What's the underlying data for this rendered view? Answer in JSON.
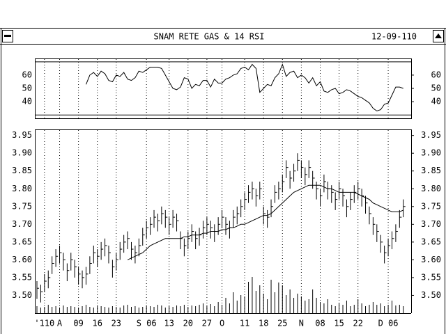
{
  "header": {
    "title": "SNAM RETE GAS & 14 RSI",
    "date": "12-09-110"
  },
  "chart_data": [
    {
      "type": "line",
      "values": [
        null,
        null,
        null,
        null,
        null,
        null,
        null,
        null,
        null,
        null,
        null,
        null,
        null,
        53,
        60,
        62,
        59,
        63,
        61,
        56,
        55,
        60,
        59,
        62,
        57,
        56,
        58,
        63,
        62,
        64,
        66,
        66,
        66,
        65,
        60,
        55,
        50,
        49,
        51,
        58,
        57,
        50,
        53,
        52,
        56,
        56,
        51,
        57,
        54,
        54,
        57,
        58,
        60,
        61,
        65,
        66,
        64,
        68,
        65,
        47,
        50,
        53,
        52,
        58,
        61,
        68,
        59,
        62,
        63,
        58,
        60,
        58,
        54,
        58,
        52,
        55,
        48,
        47,
        49,
        50,
        46,
        47,
        49,
        48,
        46,
        44,
        43,
        41,
        39,
        35,
        33,
        34,
        38,
        39,
        45,
        51,
        51,
        50
      ],
      "levels": [
        30,
        70
      ],
      "ylim": [
        27.5,
        72
      ],
      "yticks": [
        40,
        50,
        60
      ],
      "color": "#000000"
    },
    {
      "type": "hlc",
      "categories": [
        null,
        null,
        "'110",
        null,
        null,
        null,
        "A",
        null,
        null,
        null,
        null,
        "09",
        null,
        null,
        null,
        null,
        "16",
        null,
        null,
        null,
        null,
        "23",
        null,
        null,
        null,
        null,
        null,
        null,
        null,
        "S 06",
        null,
        null,
        null,
        null,
        null,
        "13",
        null,
        null,
        null,
        null,
        "20",
        null,
        null,
        null,
        null,
        "27",
        null,
        null,
        null,
        "O",
        null,
        null,
        null,
        null,
        null,
        "11",
        null,
        null,
        null,
        null,
        "18",
        null,
        null,
        null,
        null,
        "25",
        null,
        null,
        null,
        null,
        "N",
        null,
        null,
        null,
        null,
        "08",
        null,
        null,
        null,
        null,
        "15",
        null,
        null,
        null,
        null,
        "22",
        null,
        null,
        null,
        null,
        null,
        null,
        null,
        "D 06",
        null,
        null,
        null,
        null
      ],
      "high": [
        3.54,
        3.53,
        3.56,
        3.57,
        3.61,
        3.63,
        3.64,
        3.62,
        3.59,
        3.62,
        3.6,
        3.58,
        3.57,
        3.58,
        3.61,
        3.64,
        3.63,
        3.65,
        3.66,
        3.64,
        3.6,
        3.62,
        3.65,
        3.67,
        3.68,
        3.65,
        3.64,
        3.66,
        3.69,
        3.71,
        3.72,
        3.74,
        3.73,
        3.75,
        3.74,
        3.72,
        3.74,
        3.73,
        3.68,
        3.66,
        3.68,
        3.7,
        3.68,
        3.69,
        3.71,
        3.72,
        3.71,
        3.7,
        3.72,
        3.74,
        3.72,
        3.71,
        3.74,
        3.75,
        3.77,
        3.79,
        3.81,
        3.82,
        3.8,
        3.82,
        3.75,
        3.74,
        3.77,
        3.81,
        3.82,
        3.84,
        3.88,
        3.85,
        3.87,
        3.9,
        3.88,
        3.86,
        3.88,
        3.85,
        3.82,
        3.8,
        3.84,
        3.82,
        3.81,
        3.79,
        3.82,
        3.8,
        3.77,
        3.79,
        3.81,
        3.82,
        3.8,
        3.78,
        3.75,
        3.72,
        3.7,
        3.67,
        3.64,
        3.66,
        3.68,
        3.7,
        3.74,
        3.77
      ],
      "low": [
        3.49,
        3.48,
        3.51,
        3.52,
        3.56,
        3.58,
        3.59,
        3.57,
        3.54,
        3.57,
        3.55,
        3.53,
        3.52,
        3.53,
        3.56,
        3.59,
        3.58,
        3.6,
        3.61,
        3.59,
        3.55,
        3.57,
        3.6,
        3.62,
        3.63,
        3.6,
        3.59,
        3.61,
        3.64,
        3.66,
        3.67,
        3.69,
        3.68,
        3.7,
        3.69,
        3.67,
        3.69,
        3.68,
        3.63,
        3.61,
        3.63,
        3.65,
        3.63,
        3.64,
        3.66,
        3.67,
        3.66,
        3.65,
        3.67,
        3.69,
        3.67,
        3.66,
        3.69,
        3.7,
        3.72,
        3.74,
        3.76,
        3.77,
        3.75,
        3.77,
        3.7,
        3.69,
        3.72,
        3.76,
        3.77,
        3.79,
        3.83,
        3.8,
        3.82,
        3.85,
        3.83,
        3.81,
        3.83,
        3.8,
        3.77,
        3.75,
        3.79,
        3.77,
        3.76,
        3.74,
        3.77,
        3.75,
        3.72,
        3.74,
        3.76,
        3.77,
        3.75,
        3.73,
        3.7,
        3.67,
        3.65,
        3.62,
        3.59,
        3.61,
        3.63,
        3.65,
        3.69,
        3.72
      ],
      "close": [
        3.52,
        3.51,
        3.54,
        3.55,
        3.59,
        3.61,
        3.62,
        3.6,
        3.57,
        3.6,
        3.58,
        3.56,
        3.55,
        3.56,
        3.59,
        3.62,
        3.61,
        3.63,
        3.64,
        3.62,
        3.58,
        3.6,
        3.63,
        3.65,
        3.66,
        3.63,
        3.62,
        3.64,
        3.67,
        3.69,
        3.7,
        3.72,
        3.71,
        3.73,
        3.72,
        3.7,
        3.72,
        3.71,
        3.66,
        3.64,
        3.66,
        3.68,
        3.66,
        3.67,
        3.69,
        3.7,
        3.69,
        3.68,
        3.7,
        3.72,
        3.7,
        3.69,
        3.72,
        3.73,
        3.75,
        3.77,
        3.79,
        3.8,
        3.78,
        3.8,
        3.73,
        3.72,
        3.75,
        3.79,
        3.8,
        3.82,
        3.86,
        3.83,
        3.85,
        3.88,
        3.86,
        3.84,
        3.86,
        3.83,
        3.8,
        3.78,
        3.82,
        3.8,
        3.79,
        3.77,
        3.8,
        3.78,
        3.75,
        3.77,
        3.79,
        3.8,
        3.78,
        3.76,
        3.73,
        3.7,
        3.68,
        3.65,
        3.62,
        3.64,
        3.66,
        3.68,
        3.72,
        3.75
      ],
      "moving_average": [
        null,
        null,
        null,
        null,
        null,
        null,
        null,
        null,
        null,
        null,
        null,
        null,
        null,
        null,
        null,
        null,
        null,
        null,
        null,
        null,
        null,
        null,
        null,
        null,
        3.6,
        3.605,
        3.61,
        3.615,
        3.62,
        3.63,
        3.64,
        3.645,
        3.65,
        3.655,
        3.66,
        3.66,
        3.66,
        3.66,
        3.66,
        3.665,
        3.665,
        3.67,
        3.67,
        3.67,
        3.675,
        3.675,
        3.68,
        3.68,
        3.68,
        3.685,
        3.685,
        3.69,
        3.69,
        3.695,
        3.7,
        3.7,
        3.705,
        3.71,
        3.715,
        3.72,
        3.725,
        3.725,
        3.73,
        3.74,
        3.75,
        3.76,
        3.77,
        3.78,
        3.79,
        3.795,
        3.8,
        3.805,
        3.81,
        3.81,
        3.81,
        3.81,
        3.805,
        3.8,
        3.8,
        3.795,
        3.79,
        3.79,
        3.79,
        3.79,
        3.79,
        3.785,
        3.78,
        3.775,
        3.77,
        3.76,
        3.755,
        3.75,
        3.745,
        3.74,
        3.735,
        3.735,
        3.735,
        3.74
      ],
      "volume": [
        10,
        8,
        9,
        12,
        9,
        10,
        8,
        11,
        9,
        10,
        9,
        8,
        10,
        12,
        9,
        8,
        11,
        10,
        9,
        8,
        10,
        9,
        8,
        11,
        12,
        9,
        10,
        8,
        9,
        11,
        10,
        9,
        12,
        11,
        8,
        10,
        9,
        11,
        10,
        12,
        9,
        11,
        10,
        12,
        14,
        11,
        13,
        10,
        16,
        12,
        22,
        14,
        30,
        18,
        26,
        24,
        45,
        52,
        32,
        40,
        28,
        20,
        48,
        30,
        44,
        40,
        26,
        34,
        22,
        28,
        24,
        18,
        20,
        34,
        22,
        16,
        14,
        20,
        12,
        10,
        14,
        12,
        18,
        10,
        12,
        20,
        14,
        10,
        12,
        16,
        12,
        14,
        10,
        12,
        18,
        11,
        12,
        10
      ],
      "ylim": [
        3.45,
        3.965
      ],
      "yticks": [
        {
          "value": 3.5,
          "label": "3.50"
        },
        3.55,
        {
          "value": 3.6,
          "label": "3.60"
        },
        3.65,
        {
          "value": 3.7,
          "label": "3.70"
        },
        3.75,
        {
          "value": 3.8,
          "label": "3.80"
        },
        3.85,
        {
          "value": 3.9,
          "label": "3.90"
        },
        3.95
      ],
      "grid": true,
      "color": "#000000"
    }
  ]
}
